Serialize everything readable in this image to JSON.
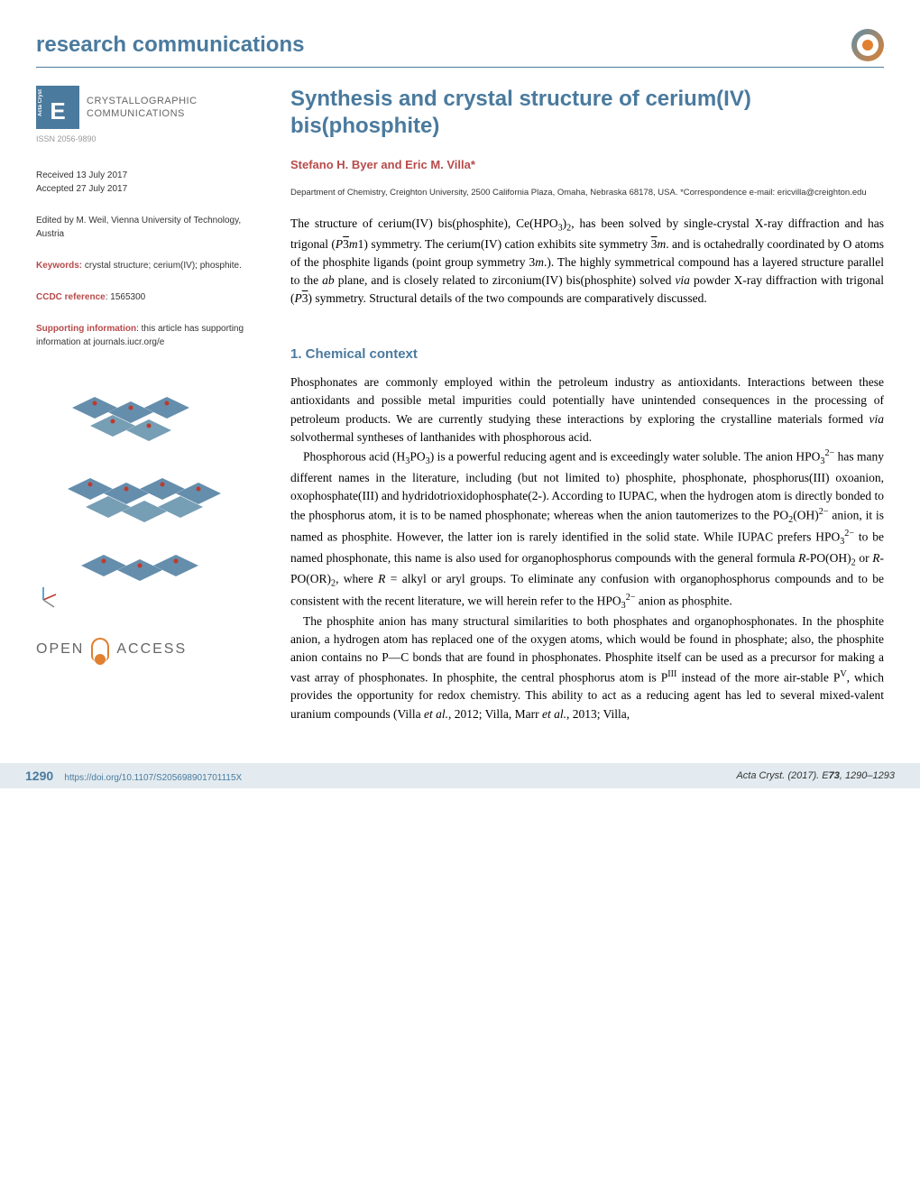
{
  "header": {
    "section_title": "research communications"
  },
  "sidebar": {
    "journal_name_line1": "CRYSTALLOGRAPHIC",
    "journal_name_line2": "COMMUNICATIONS",
    "issn": "ISSN 2056-9890",
    "received": "Received 13 July 2017",
    "accepted": "Accepted 27 July 2017",
    "editor": "Edited by M. Weil, Vienna University of Technology, Austria",
    "keywords_label": "Keywords:",
    "keywords_text": " crystal structure; cerium(IV); phosphite.",
    "ccdc_label": "CCDC reference",
    "ccdc_text": ": 1565300",
    "supporting_label": "Supporting information",
    "supporting_text": ": this article has supporting information at journals.iucr.org/e",
    "open_access": "OPEN",
    "access": "ACCESS"
  },
  "article": {
    "title_html": "Synthesis and crystal structure of cerium(IV) bis(phosphite)",
    "authors": "Stefano H. Byer and Eric M. Villa*",
    "affiliation": "Department of Chemistry, Creighton University, 2500 California Plaza, Omaha, Nebraska 68178, USA. *Correspondence e-mail: ericvilla@creighton.edu",
    "abstract_html": "The structure of cerium(IV) bis(phosphite), Ce(HPO<sub>3</sub>)<sub>2</sub>, has been solved by single-crystal X-ray diffraction and has trigonal (<i>P</i><span class=\"ov\">3</span><i>m</i>1) symmetry. The cerium(IV) cation exhibits site symmetry <span class=\"ov\">3</span><i>m</i>. and is octahedrally coordinated by O atoms of the phosphite ligands (point group symmetry 3<i>m</i>.). The highly symmetrical compound has a layered structure parallel to the <i>ab</i> plane, and is closely related to zirconium(IV) bis(phosphite) solved <i>via</i> powder X-ray diffraction with trigonal (<i>P</i><span class=\"ov\">3</span>) symmetry. Structural details of the two compounds are comparatively discussed.",
    "section1_heading": "1. Chemical context",
    "para1_html": "Phosphonates are commonly employed within the petroleum industry as antioxidants. Interactions between these antioxidants and possible metal impurities could potentially have unintended consequences in the processing of petroleum products. We are currently studying these interactions by exploring the crystalline materials formed <i>via</i> solvothermal syntheses of lanthanides with phosphorous acid.",
    "para2_html": "Phosphorous acid (H<sub>3</sub>PO<sub>3</sub>) is a powerful reducing agent and is exceedingly water soluble. The anion HPO<sub>3</sub><sup>2−</sup> has many different names in the literature, including (but not limited to) phosphite, phosphonate, phosphorus(III) oxoanion, oxophosphate(III) and hydridotrioxidophosphate(2-). According to IUPAC, when the hydrogen atom is directly bonded to the phosphorus atom, it is to be named phosphonate; whereas when the anion tautomerizes to the PO<sub>2</sub>(OH)<sup>2−</sup> anion, it is named as phosphite. However, the latter ion is rarely identified in the solid state. While IUPAC prefers HPO<sub>3</sub><sup>2−</sup> to be named phosphonate, this name is also used for organophosphorus compounds with the general formula <i>R</i>-PO(OH)<sub>2</sub> or <i>R</i>-PO(OR)<sub>2</sub>, where <i>R</i> = alkyl or aryl groups. To eliminate any confusion with organophosphorus compounds and to be consistent with the recent literature, we will herein refer to the HPO<sub>3</sub><sup>2−</sup> anion as phosphite.",
    "para3_html": "The phosphite anion has many structural similarities to both phosphates and organophosphonates. In the phosphite anion, a hydrogen atom has replaced one of the oxygen atoms, which would be found in phosphate; also, the phosphite anion contains no P—C bonds that are found in phosphonates. Phosphite itself can be used as a precursor for making a vast array of phosphonates. In phosphite, the central phosphorus atom is P<sup>III</sup> instead of the more air-stable P<sup>V</sup>, which provides the opportunity for redox chemistry. This ability to act as a reducing agent has led to several mixed-valent uranium compounds (Villa <i>et al.</i>, 2012; Villa, Marr <i>et al.</i>, 2013; Villa,"
  },
  "footer": {
    "page_number": "1290",
    "doi": "https://doi.org/10.1107/S205698901701115X",
    "citation_html": "<i>Acta Cryst.</i> (2017). E<b>73</b>, 1290–1293"
  },
  "structure_figure": {
    "type": "molecular-structure-diagram",
    "description": "Layered crystal structure showing octahedra and tetrahedra",
    "polyhedra_color": "#4a7a9e",
    "atom_colors": {
      "O": "#c0392b",
      "P": "#d68910"
    },
    "axes_colors": {
      "a": "#c0392b",
      "c": "#2e86c1"
    }
  },
  "colors": {
    "primary_blue": "#4a7a9e",
    "accent_red": "#b84a4a",
    "orange": "#e08030",
    "footer_bg": "#e3ebf0",
    "text": "#000000",
    "muted": "#666666"
  }
}
